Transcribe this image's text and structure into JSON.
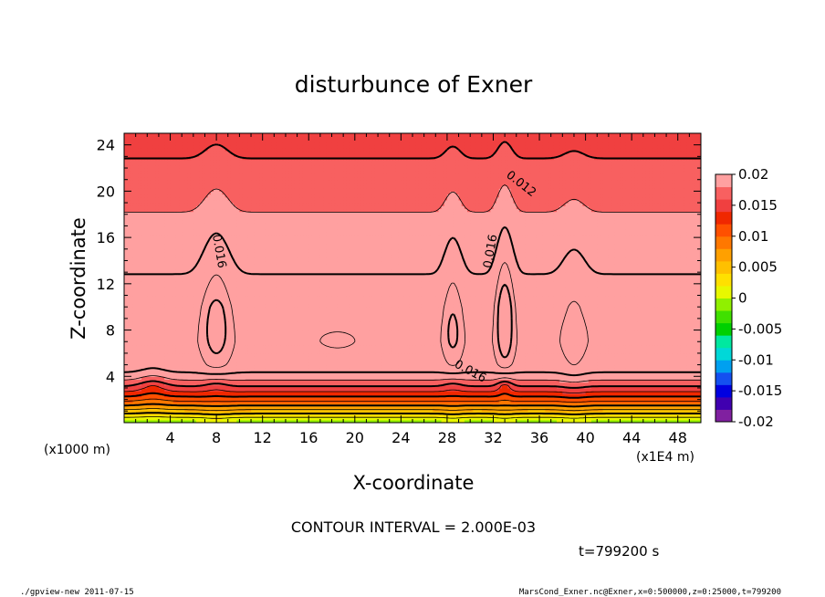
{
  "chart_data": {
    "type": "heatmap",
    "title": "disturbunce of Exner",
    "xlabel": "X-coordinate",
    "ylabel": "Z-coordinate",
    "x_unit_label": "(x1E4 m)",
    "z_unit_label": "(x1000 m)",
    "xlim": [
      0,
      50
    ],
    "ylim": [
      0,
      25
    ],
    "x_ticks": [
      "4",
      "8",
      "12",
      "16",
      "20",
      "24",
      "28",
      "32",
      "36",
      "40",
      "44",
      "48"
    ],
    "y_ticks": [
      "4",
      "8",
      "12",
      "16",
      "20",
      "24"
    ],
    "contour_interval_text": "CONTOUR INTERVAL = 2.000E-03",
    "contour_interval": 0.002,
    "time_text": "t=799200 s",
    "contour_labels": [
      "0.012",
      "0.016",
      "0.016",
      "0.016"
    ],
    "colorbar": {
      "ticks": [
        "0.02",
        "0.015",
        "0.01",
        "0.005",
        "0",
        "-0.005",
        "-0.01",
        "-0.015",
        "-0.02"
      ],
      "range": [
        -0.02,
        0.02
      ],
      "colors": [
        "#8020a0",
        "#4000b0",
        "#0000e0",
        "#1450f0",
        "#00a0f0",
        "#00d8d8",
        "#00e8a0",
        "#00d000",
        "#40e000",
        "#90f000",
        "#e8f800",
        "#ffe000",
        "#ffc000",
        "#ffa000",
        "#ff7800",
        "#ff5000",
        "#f02800",
        "#f04040",
        "#f86060",
        "#ffa0a0"
      ]
    },
    "features": {
      "peaks_x": [
        8,
        28.5,
        33,
        39
      ],
      "band_center_z": 7,
      "dip_x": [
        2.5,
        8,
        28.5,
        33
      ]
    }
  },
  "footer": {
    "left": "./gpview-new  2011-07-15",
    "right": "MarsCond_Exner.nc@Exner,x=0:500000,z=0:25000,t=799200"
  }
}
